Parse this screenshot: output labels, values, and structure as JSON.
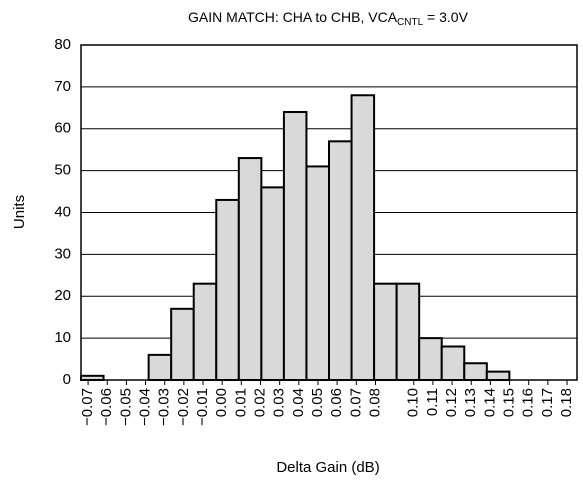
{
  "chart_data": {
    "type": "bar",
    "title": "GAIN MATCH: CHA to CHB, VCA",
    "title_subscript": "CNTL",
    "title_suffix": " = 3.0V",
    "x_label": "Delta Gain (dB)",
    "y_label": "Units",
    "categories": [
      null,
      null,
      null,
      null,
      null,
      null,
      null,
      null,
      null,
      null,
      null,
      null,
      null,
      null,
      null,
      null,
      null,
      null,
      null,
      null,
      null,
      null
    ],
    "values": [
      1,
      0,
      0,
      6,
      17,
      23,
      43,
      53,
      46,
      64,
      51,
      57,
      68,
      23,
      23,
      10,
      8,
      4,
      2,
      0,
      0,
      0
    ],
    "color": "#d9d9d9",
    "xlim": [
      -0.0737,
      0.1852
    ],
    "xticks": [
      {
        "value": -0.07,
        "label": "−0.07"
      },
      {
        "value": -0.06,
        "label": "−0.06"
      },
      {
        "value": -0.05,
        "label": "−0.05"
      },
      {
        "value": -0.04,
        "label": "−0.04"
      },
      {
        "value": -0.03,
        "label": "−0.03"
      },
      {
        "value": -0.02,
        "label": "−0.02"
      },
      {
        "value": -0.01,
        "label": "−0.01"
      },
      {
        "value": 0,
        "label": "0.00"
      },
      0.01,
      0.02,
      0.03,
      0.04,
      0.05,
      0.06,
      0.07,
      0.08,
      {
        "value": 0.1,
        "label": "0.10"
      },
      0.11,
      0.12,
      0.13,
      0.14,
      0.15,
      0.16,
      0.17,
      0.18
    ],
    "ylim": [
      0,
      80
    ],
    "yticks": [
      0,
      10,
      20,
      30,
      40,
      50,
      60,
      70,
      80
    ],
    "grid": true
  }
}
